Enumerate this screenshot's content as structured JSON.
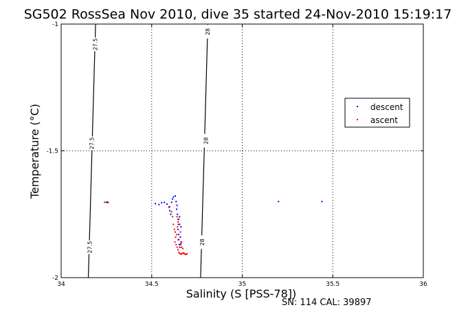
{
  "chart_data": {
    "type": "scatter",
    "title": "SG502 RossSea Nov 2010, dive 35 started 24-Nov-2010 15:19:17",
    "xlabel": "Salinity (S [PSS-78])",
    "ylabel": "Temperature (°C)",
    "xlim": [
      34,
      36
    ],
    "ylim": [
      -2,
      -1
    ],
    "xticks": [
      "34",
      "34.5",
      "35",
      "35.5",
      "36"
    ],
    "yticks": [
      "-2",
      "-1.5",
      "-1"
    ],
    "grid": true,
    "legend_position": "right",
    "footer": "SN: 114  CAL: 39897",
    "density_contours": [
      {
        "label": "27.5",
        "points": [
          [
            34.19,
            -1.0
          ],
          [
            34.18,
            -1.25
          ],
          [
            34.17,
            -1.5
          ],
          [
            34.16,
            -1.75
          ],
          [
            34.15,
            -2.0
          ]
        ],
        "label_positions": [
          [
            34.19,
            -1.08
          ],
          [
            34.17,
            -1.47
          ],
          [
            34.16,
            -1.88
          ]
        ]
      },
      {
        "label": "28",
        "points": [
          [
            34.81,
            -1.0
          ],
          [
            34.8,
            -1.25
          ],
          [
            34.79,
            -1.5
          ],
          [
            34.78,
            -1.75
          ],
          [
            34.77,
            -2.0
          ]
        ],
        "label_positions": [
          [
            34.81,
            -1.03
          ],
          [
            34.8,
            -1.46
          ],
          [
            34.78,
            -1.86
          ]
        ]
      }
    ],
    "series": [
      {
        "name": "descent",
        "color": "#0000ff",
        "points": [
          [
            34.25,
            -1.703
          ],
          [
            34.255,
            -1.702
          ],
          [
            34.52,
            -1.708
          ],
          [
            34.54,
            -1.712
          ],
          [
            34.555,
            -1.705
          ],
          [
            34.57,
            -1.703
          ],
          [
            34.585,
            -1.71
          ],
          [
            34.595,
            -1.722
          ],
          [
            34.6,
            -1.736
          ],
          [
            34.605,
            -1.75
          ],
          [
            34.61,
            -1.703
          ],
          [
            34.615,
            -1.69
          ],
          [
            34.62,
            -1.682
          ],
          [
            34.63,
            -1.678
          ],
          [
            34.635,
            -1.7
          ],
          [
            34.64,
            -1.715
          ],
          [
            34.638,
            -1.73
          ],
          [
            34.642,
            -1.75
          ],
          [
            34.646,
            -1.77
          ],
          [
            34.648,
            -1.79
          ],
          [
            34.645,
            -1.81
          ],
          [
            34.649,
            -1.83
          ],
          [
            34.65,
            -1.85
          ],
          [
            34.652,
            -1.87
          ],
          [
            34.655,
            -1.88
          ],
          [
            34.66,
            -1.867
          ],
          [
            34.665,
            -1.86
          ],
          [
            34.658,
            -1.84
          ],
          [
            34.662,
            -1.8
          ],
          [
            34.654,
            -1.76
          ],
          [
            35.2,
            -1.7
          ],
          [
            35.44,
            -1.7
          ]
        ]
      },
      {
        "name": "ascent",
        "color": "#ff0000",
        "points": [
          [
            34.24,
            -1.703
          ],
          [
            34.26,
            -1.704
          ],
          [
            34.6,
            -1.72
          ],
          [
            34.61,
            -1.74
          ],
          [
            34.615,
            -1.76
          ],
          [
            34.62,
            -1.79
          ],
          [
            34.625,
            -1.81
          ],
          [
            34.63,
            -1.82
          ],
          [
            34.632,
            -1.84
          ],
          [
            34.628,
            -1.86
          ],
          [
            34.635,
            -1.87
          ],
          [
            34.64,
            -1.88
          ],
          [
            34.645,
            -1.89
          ],
          [
            34.65,
            -1.9
          ],
          [
            34.655,
            -1.905
          ],
          [
            34.66,
            -1.907
          ],
          [
            34.665,
            -1.906
          ],
          [
            34.67,
            -1.904
          ],
          [
            34.675,
            -1.903
          ],
          [
            34.68,
            -1.905
          ],
          [
            34.685,
            -1.908
          ],
          [
            34.69,
            -1.908
          ],
          [
            34.695,
            -1.906
          ],
          [
            34.64,
            -1.76
          ],
          [
            34.645,
            -1.78
          ],
          [
            34.642,
            -1.8
          ],
          [
            34.638,
            -1.83
          ],
          [
            34.646,
            -1.85
          ],
          [
            34.66,
            -1.87
          ],
          [
            34.665,
            -1.88
          ],
          [
            34.672,
            -1.885
          ],
          [
            34.662,
            -1.86
          ],
          [
            34.658,
            -1.82
          ],
          [
            34.655,
            -1.79
          ],
          [
            34.65,
            -1.77
          ]
        ]
      }
    ]
  }
}
